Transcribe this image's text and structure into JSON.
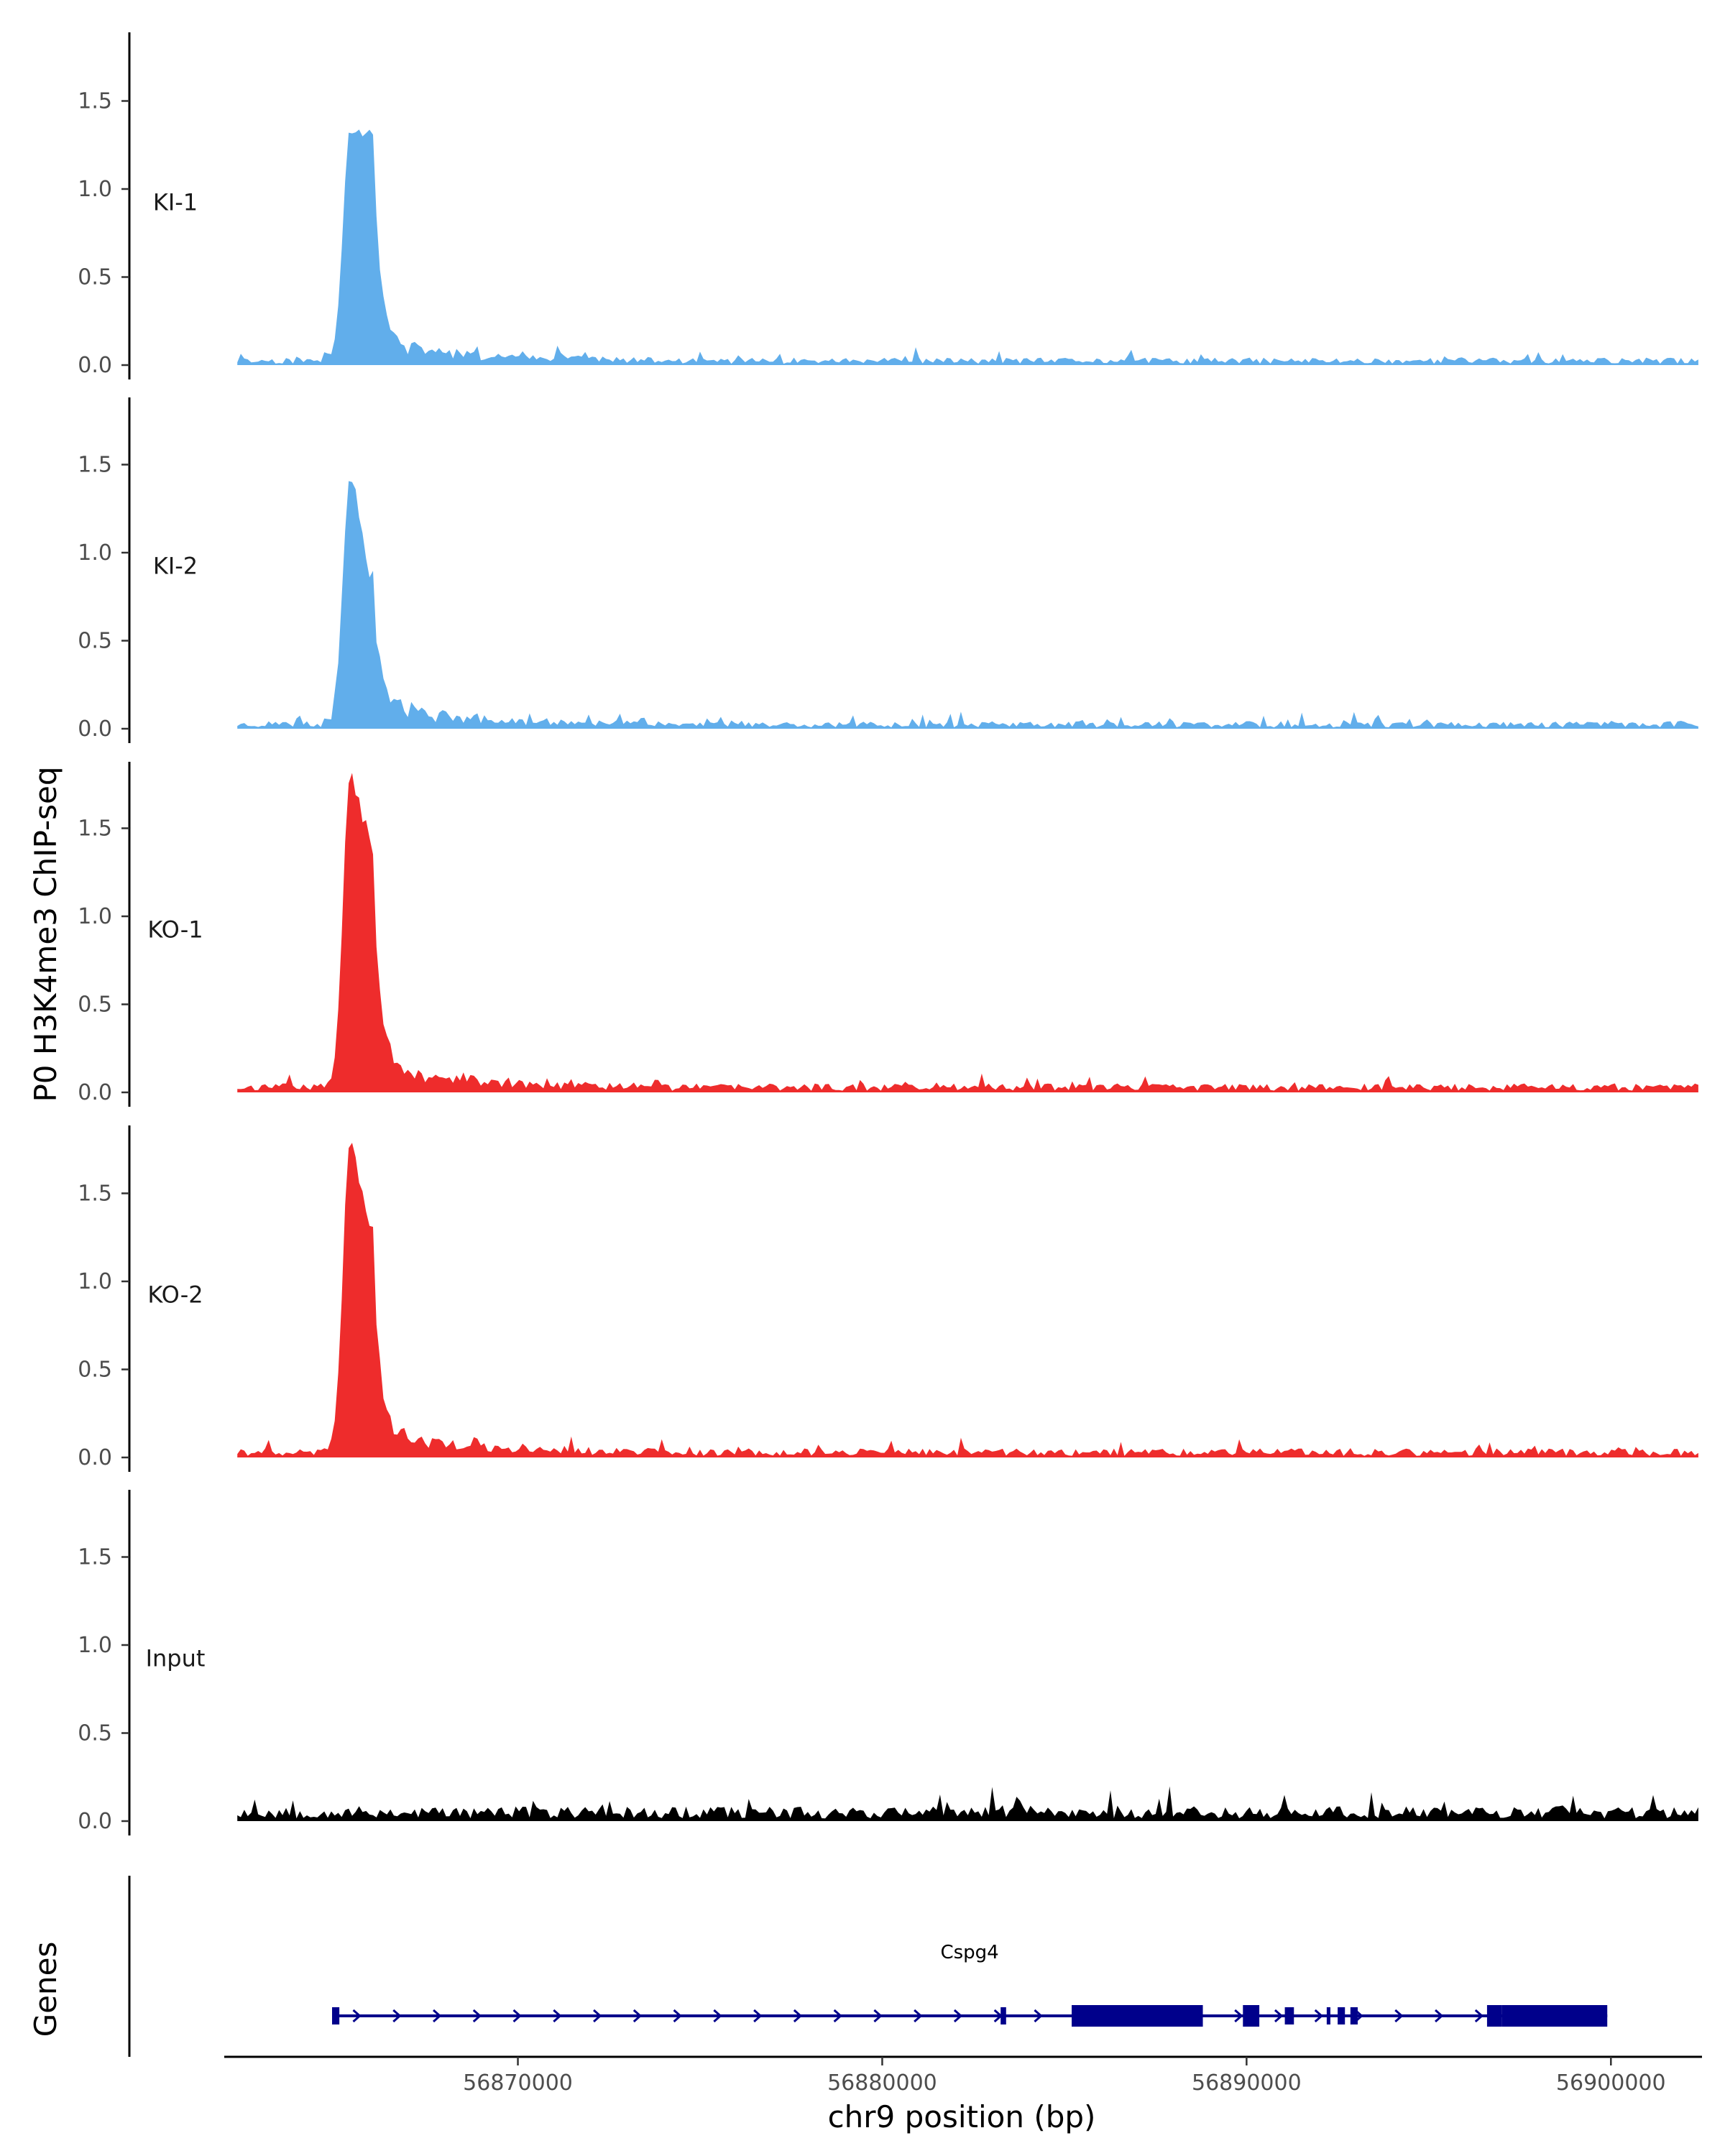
{
  "chart_data": {
    "type": "area",
    "ylabel": "P0 H3K4me3 ChIP-seq",
    "xlabel": "chr9 position (bp)",
    "xlim": [
      56862000,
      56902500
    ],
    "ylim": [
      0,
      1.85
    ],
    "y_ticks": [
      0.0,
      0.5,
      1.0,
      1.5
    ],
    "y_tick_labels": [
      "0.0",
      "0.5",
      "1.0",
      "1.5"
    ],
    "x_ticks": [
      56870000,
      56880000,
      56890000,
      56900000
    ],
    "x_tick_labels": [
      "56870000",
      "56880000",
      "56890000",
      "56900000"
    ],
    "grid": false,
    "tracks": [
      {
        "name": "KI-1",
        "color": "#61AEEB",
        "peak": 1.32,
        "secondary": 1.28,
        "base": 0.025,
        "seed": 11
      },
      {
        "name": "KI-2",
        "color": "#61AEEB",
        "peak": 1.42,
        "secondary": 0.78,
        "base": 0.025,
        "seed": 23
      },
      {
        "name": "KO-1",
        "color": "#EE2C2C",
        "peak": 1.78,
        "secondary": 1.35,
        "base": 0.03,
        "seed": 37
      },
      {
        "name": "KO-2",
        "color": "#EE2C2C",
        "peak": 1.79,
        "secondary": 1.22,
        "base": 0.03,
        "seed": 41
      },
      {
        "name": "Input",
        "color": "#000000",
        "peak": 0.0,
        "secondary": 0.0,
        "base": 0.05,
        "seed": 53
      }
    ],
    "genes_track": {
      "label": "Genes",
      "gene": "Cspg4",
      "color": "#00008B",
      "start": 56864900,
      "end": 56899900,
      "strand": "+",
      "exons": [
        [
          56864900,
          56865100
        ],
        [
          56883250,
          56883400
        ],
        [
          56885200,
          56888800
        ],
        [
          56889900,
          56890350
        ],
        [
          56891050,
          56891300
        ],
        [
          56892200,
          56892300
        ],
        [
          56892500,
          56892700
        ],
        [
          56892850,
          56893050
        ],
        [
          56896600,
          56897000
        ],
        [
          56897000,
          56899900
        ]
      ]
    }
  }
}
